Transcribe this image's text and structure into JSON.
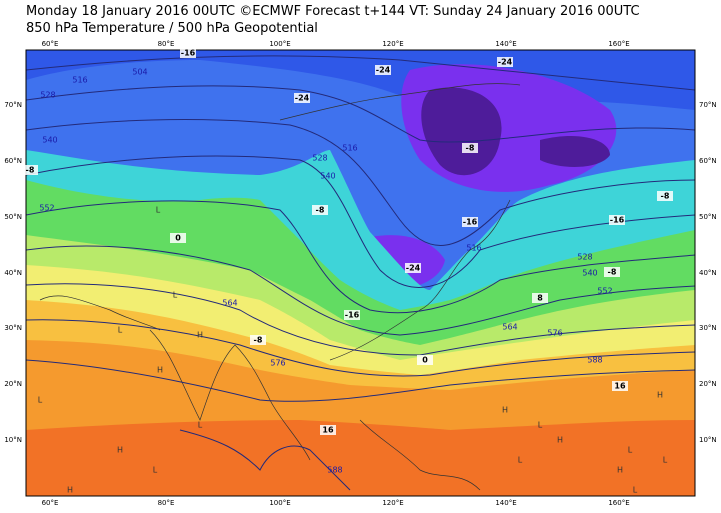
{
  "header": {
    "title": "Monday 18 January 2016 00UTC ©ECMWF Forecast t+144 VT: Sunday 24 January 2016 00UTC",
    "subtitle": "850 hPa Temperature / 500 hPa Geopotential"
  },
  "map": {
    "lon_labels": [
      "60°E",
      "80°E",
      "100°E",
      "120°E",
      "140°E",
      "160°E"
    ],
    "lat_labels": [
      "70°N",
      "60°N",
      "50°N",
      "40°N",
      "30°N",
      "20°N",
      "10°N"
    ],
    "geopotential_labels": [
      "504",
      "516",
      "528",
      "540",
      "516",
      "528",
      "540",
      "552",
      "564",
      "576",
      "588",
      "516",
      "528",
      "540",
      "552",
      "564",
      "576",
      "588"
    ],
    "temperature_labels": [
      "-16",
      "-24",
      "-24",
      "-24",
      "-8",
      "-16",
      "-24",
      "-16",
      "-8",
      "0",
      "-8",
      "0",
      "8",
      "16",
      "16",
      "-8",
      "-16",
      "-8",
      "-8"
    ],
    "pressure_centers": [
      "H",
      "H",
      "H",
      "H",
      "H",
      "H",
      "H",
      "H",
      "L",
      "L",
      "L",
      "L",
      "L",
      "L",
      "L",
      "L",
      "L",
      "L",
      "L"
    ]
  }
}
